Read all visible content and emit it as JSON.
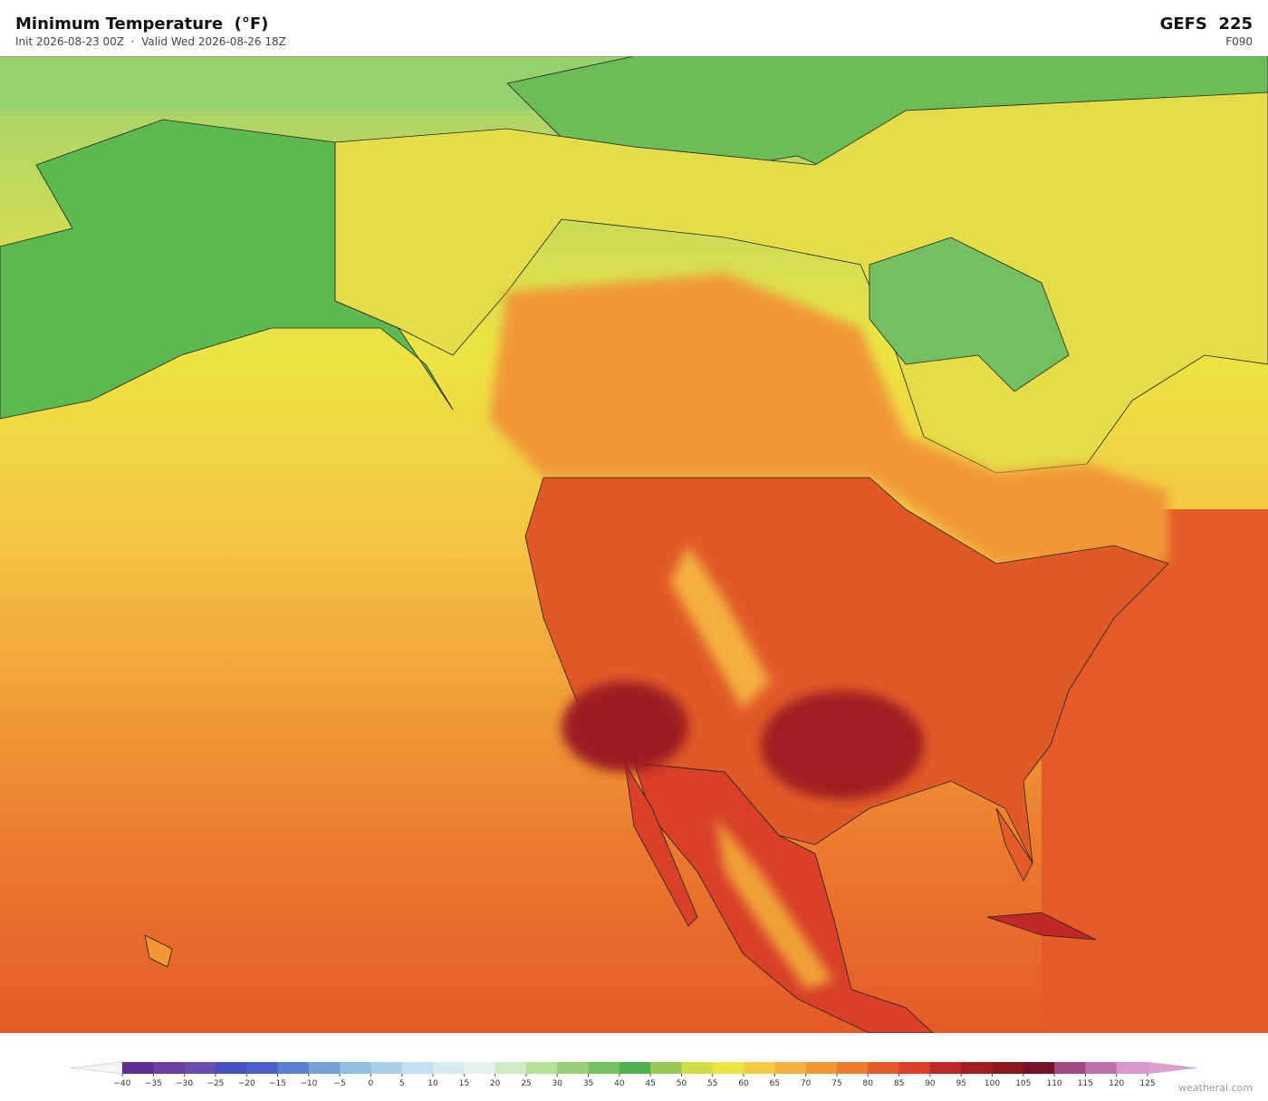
{
  "header": {
    "title": "Minimum Temperature  (°F)",
    "subtitle": "Init 2026-08-23 00Z  ·  Valid Wed 2026-08-26 18Z",
    "model": "GEFS  225",
    "forecast_hour": "F090"
  },
  "colorbar": {
    "ticks": [
      {
        "value": -40,
        "label": "−40"
      },
      {
        "value": -35,
        "label": "−35"
      },
      {
        "value": -30,
        "label": "−30"
      },
      {
        "value": -25,
        "label": "−25"
      },
      {
        "value": -20,
        "label": "−20"
      },
      {
        "value": -15,
        "label": "−15"
      },
      {
        "value": -10,
        "label": "−10"
      },
      {
        "value": -5,
        "label": "−5"
      },
      0,
      5,
      10,
      15,
      20,
      25,
      30,
      35,
      40,
      45,
      50,
      55,
      60,
      65,
      70,
      75,
      80,
      85,
      90,
      95,
      100,
      105,
      110,
      115,
      120,
      125
    ],
    "colors": [
      "#5a2d91",
      "#6b3fa0",
      "#6a4fb0",
      "#4a4fc0",
      "#4a60c8",
      "#5a80d0",
      "#78a0d8",
      "#90bce0",
      "#a8d0e8",
      "#c4e0ee",
      "#d8ecf2",
      "#e4f2ec",
      "#d0eac8",
      "#b8e09a",
      "#98d078",
      "#74c060",
      "#4fae4f",
      "#98c850",
      "#d0dc48",
      "#ece444",
      "#f4cc44",
      "#f4b040",
      "#f09838",
      "#ec7c30",
      "#e45a28",
      "#d8402a",
      "#c02828",
      "#a01c20",
      "#8c1820",
      "#741428",
      "#a04a80",
      "#c070b0",
      "#d898cc"
    ],
    "under_color": "#f4f4f4",
    "over_color": "#dca0d0"
  },
  "footer": {
    "credit": "weatherai.com"
  }
}
